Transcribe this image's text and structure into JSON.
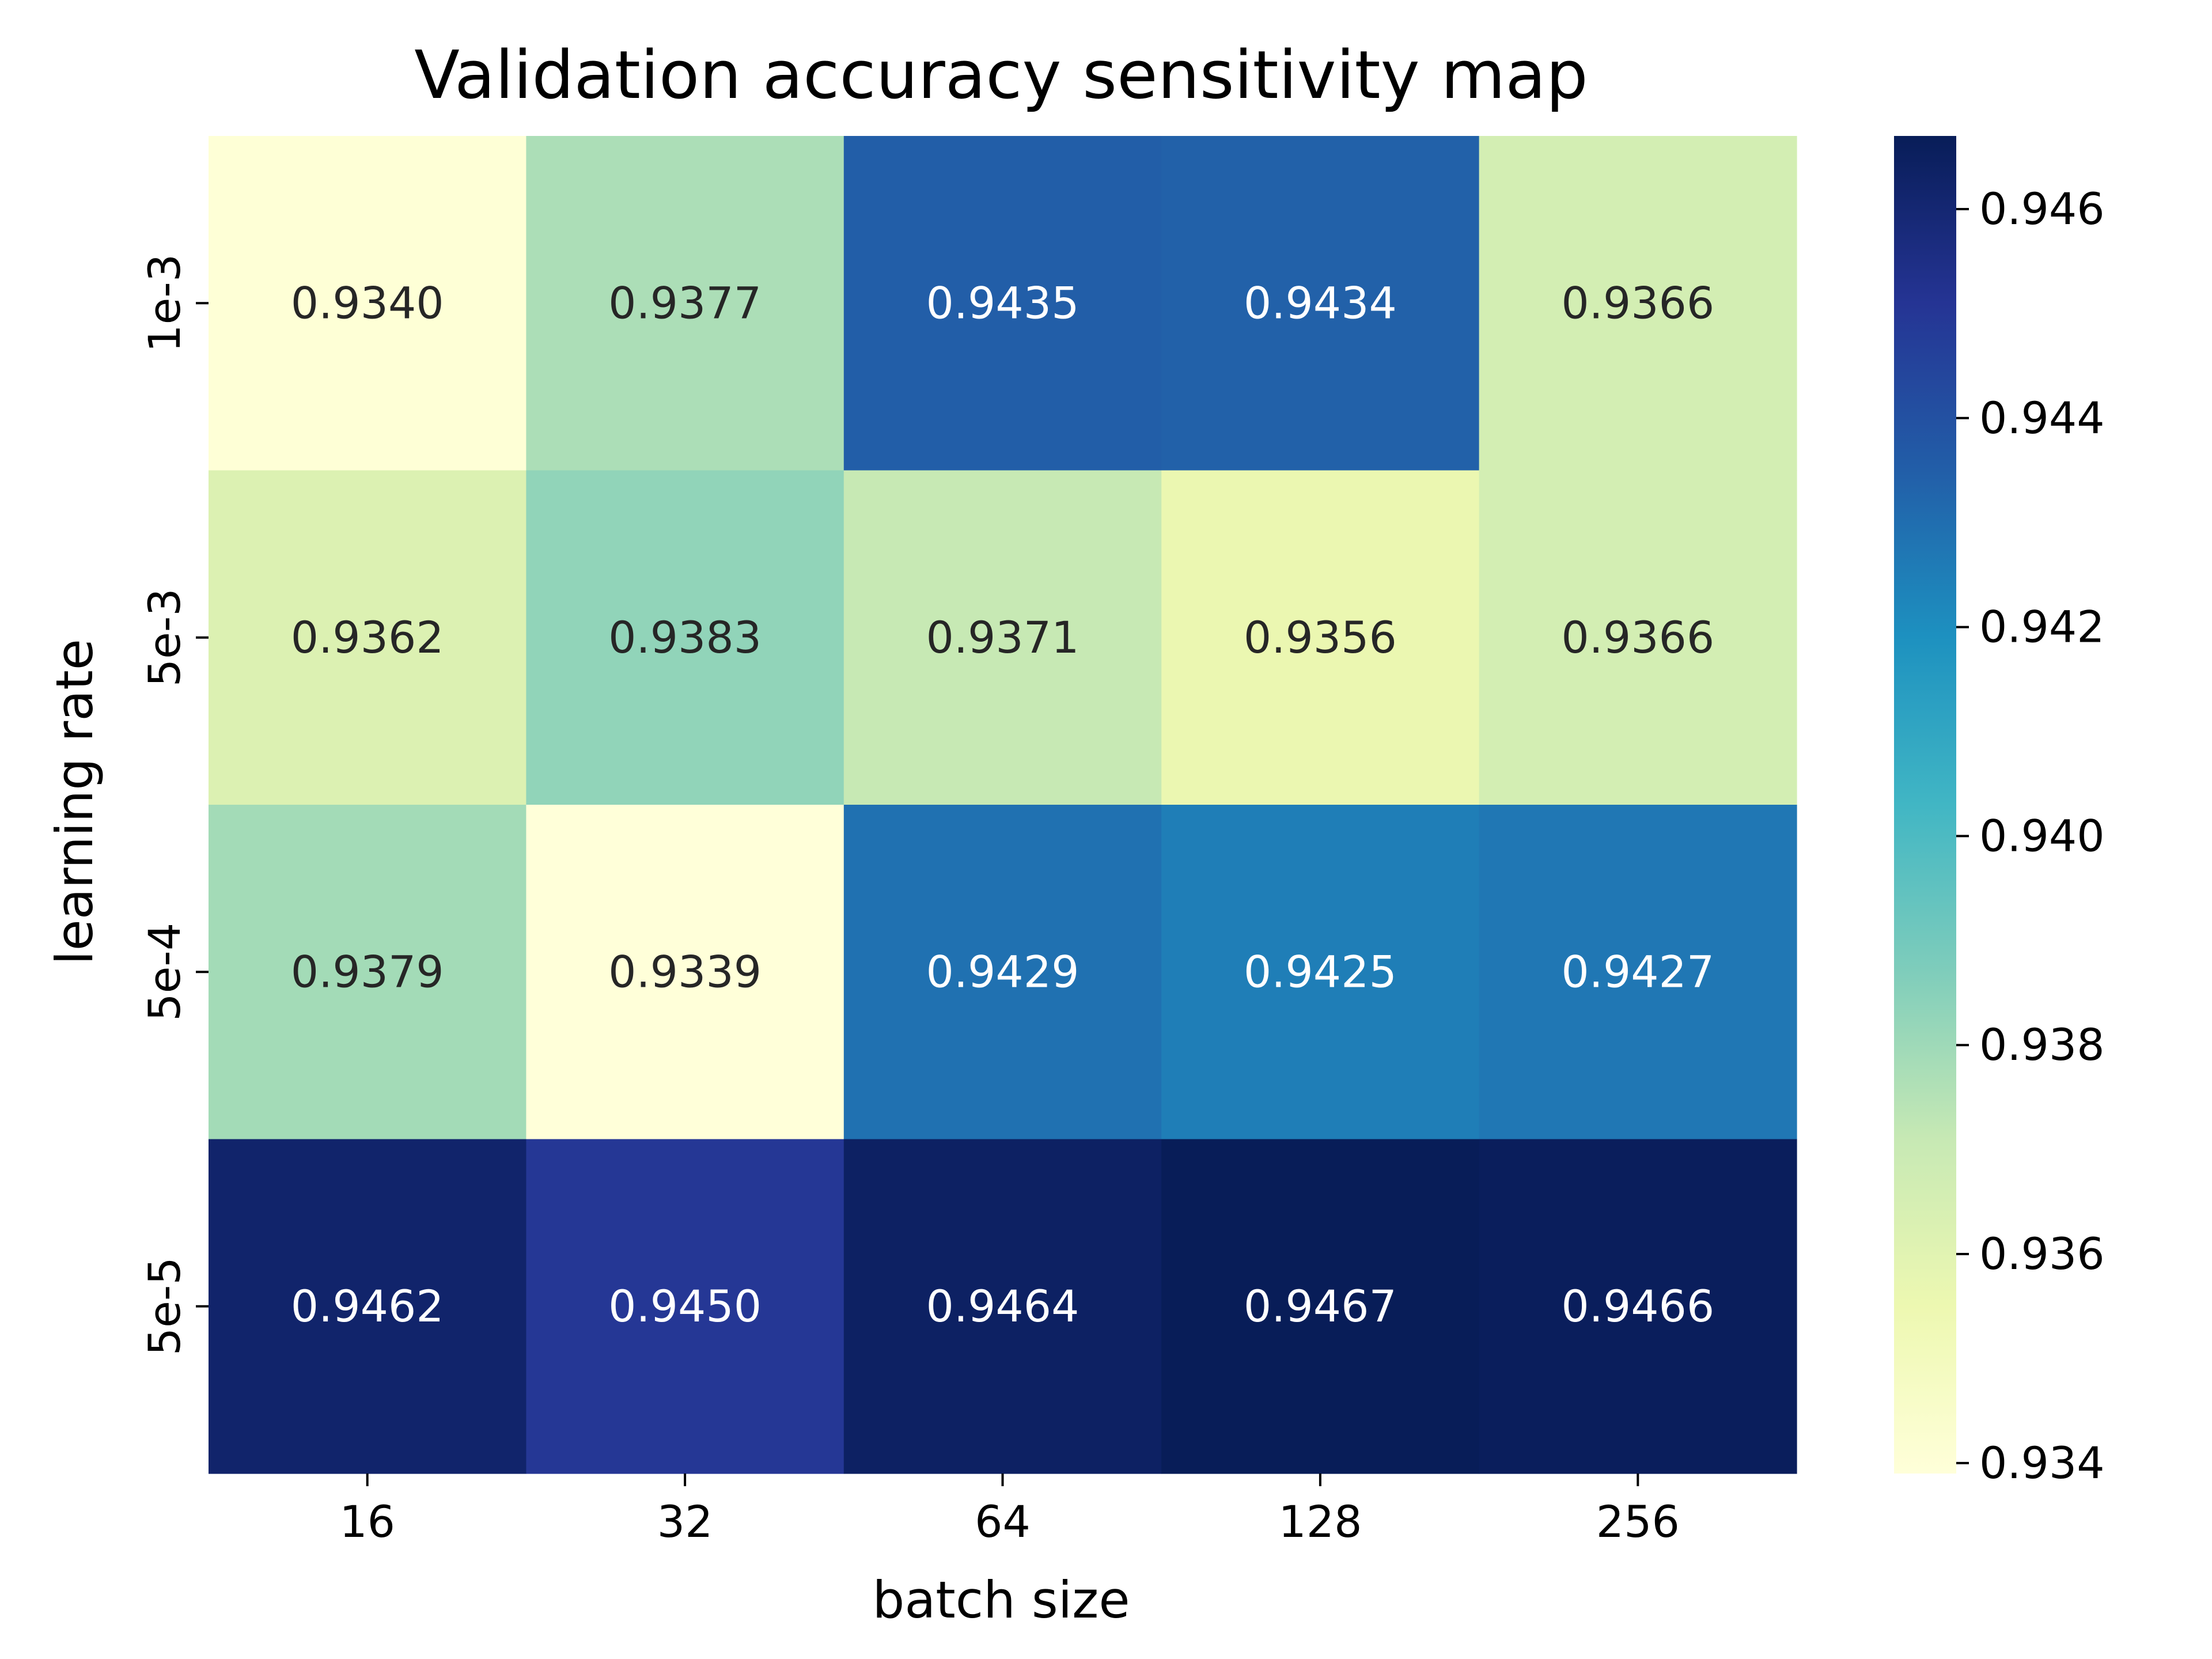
{
  "chart_data": {
    "type": "heatmap",
    "title": "Validation accuracy sensitivity map",
    "xlabel": "batch size",
    "ylabel": "learning rate",
    "x_categories": [
      "16",
      "32",
      "64",
      "128",
      "256"
    ],
    "y_categories": [
      "1e-3",
      "5e-3",
      "5e-4",
      "5e-5"
    ],
    "values": [
      [
        0.934,
        0.9377,
        0.9435,
        0.9434,
        0.9366
      ],
      [
        0.9362,
        0.9383,
        0.9371,
        0.9356,
        0.9366
      ],
      [
        0.9379,
        0.9339,
        0.9429,
        0.9425,
        0.9427
      ],
      [
        0.9462,
        0.945,
        0.9464,
        0.9467,
        0.9466
      ]
    ],
    "cell_labels": [
      [
        "0.9340",
        "0.9377",
        "0.9435",
        "0.9434",
        "0.9366"
      ],
      [
        "0.9362",
        "0.9383",
        "0.9371",
        "0.9356",
        "0.9366"
      ],
      [
        "0.9379",
        "0.9339",
        "0.9429",
        "0.9425",
        "0.9427"
      ],
      [
        "0.9462",
        "0.9450",
        "0.9464",
        "0.9467",
        "0.9466"
      ]
    ],
    "colormap": "YlGnBu",
    "colormap_stops": [
      "#ffffd9",
      "#edf8b1",
      "#c7e9b4",
      "#7fcdbb",
      "#41b6c4",
      "#1d91c0",
      "#225ea8",
      "#253494",
      "#081d58"
    ],
    "colorbar": {
      "vmin": 0.9339,
      "vmax": 0.9467,
      "ticks": [
        0.934,
        0.936,
        0.938,
        0.94,
        0.942,
        0.944,
        0.946
      ],
      "tick_labels": [
        "0.934",
        "0.936",
        "0.938",
        "0.940",
        "0.942",
        "0.944",
        "0.946"
      ]
    },
    "annotation_colors": {
      "dark": "#262626",
      "light": "#ffffff"
    }
  }
}
